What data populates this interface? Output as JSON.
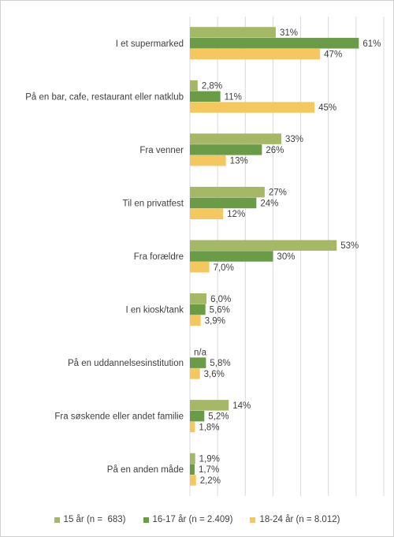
{
  "chart_data": {
    "type": "bar",
    "orientation": "horizontal",
    "categories": [
      "I et supermarked",
      "På en bar, cafe, restaurant eller natklub",
      "Fra venner",
      "Til en privatfest",
      "Fra forældre",
      "I en kiosk/tank",
      "På en uddannelsesinstitution",
      "Fra søskende eller andet familie",
      "På en anden måde"
    ],
    "series": [
      {
        "name": "15 år (n =  683)",
        "color": "#a5b866",
        "values": [
          31,
          2.8,
          33,
          27,
          53,
          6.0,
          null,
          14,
          1.9
        ],
        "labels": [
          "31%",
          "2,8%",
          "33%",
          "27%",
          "53%",
          "6,0%",
          "n/a",
          "14%",
          "1,9%"
        ]
      },
      {
        "name": "16-17 år (n = 2.409)",
        "color": "#6a9b47",
        "values": [
          61,
          11,
          26,
          24,
          30,
          5.6,
          5.8,
          5.2,
          1.7
        ],
        "labels": [
          "61%",
          "11%",
          "26%",
          "24%",
          "30%",
          "5,6%",
          "5,8%",
          "5,2%",
          "1,7%"
        ]
      },
      {
        "name": "18-24 år (n = 8.012)",
        "color": "#f4c75f",
        "values": [
          47,
          45,
          13,
          12,
          7.0,
          3.9,
          3.6,
          1.8,
          2.2
        ],
        "labels": [
          "47%",
          "45%",
          "13%",
          "12%",
          "7,0%",
          "3,9%",
          "3,6%",
          "1,8%",
          "2,2%"
        ]
      }
    ],
    "xlim": [
      0,
      70
    ],
    "grid": true,
    "legend_position": "bottom"
  }
}
